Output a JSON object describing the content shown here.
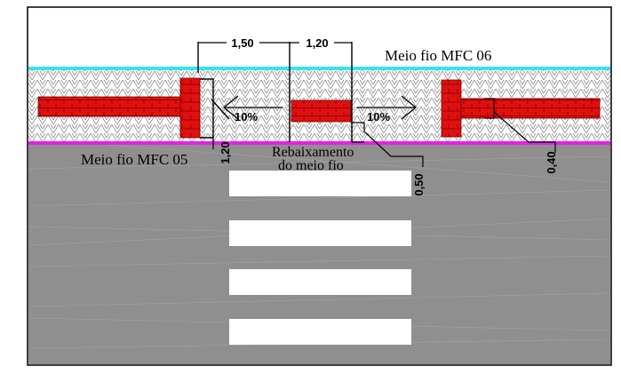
{
  "labels": {
    "curb_top": "Meio fio MFC 06",
    "curb_bottom": "Meio fio MFC 05",
    "ramp_line1": "Rebaixamento",
    "ramp_line2": "do meio fio"
  },
  "dimensions": {
    "ramp_length": "1,50",
    "ramp_center": "1,20",
    "left_vertical": "1,20",
    "depth": "0,50",
    "tactile_width": "0,40"
  },
  "slopes": {
    "left": "10%",
    "right": "10%"
  },
  "crosswalk": {
    "stripe_count": 4
  },
  "colors": {
    "curb_top": "#33e6ee",
    "curb_bottom": "#e91ee9",
    "tactile_block": "#e01010",
    "road": "#8f8f8f",
    "stripe": "#ffffff",
    "sidewalk_hatch": "#8a8a8a",
    "frame": "#000000"
  }
}
